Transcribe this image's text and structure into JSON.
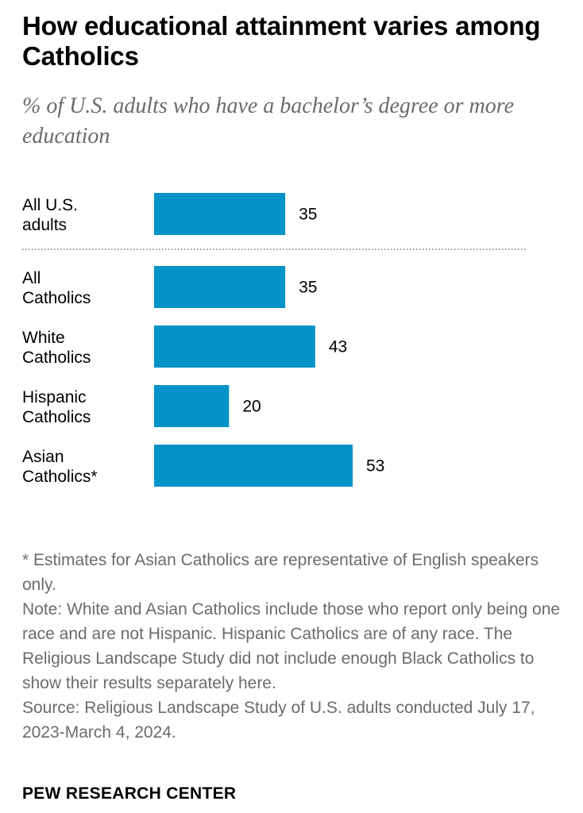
{
  "title": "How educational attainment varies among Catholics",
  "subtitle": "% of U.S. adults who have a bachelor’s degree or more education",
  "chart_data": {
    "type": "bar",
    "orientation": "horizontal",
    "title": "How educational attainment varies among Catholics",
    "subtitle": "% of U.S. adults who have a bachelor’s degree or more education",
    "bar_color": "#0393c8",
    "categories": [
      [
        "All U.S.",
        "adults"
      ],
      [
        "All",
        "Catholics"
      ],
      [
        "White",
        "Catholics"
      ],
      [
        "Hispanic",
        "Catholics"
      ],
      [
        "Asian",
        "Catholics*"
      ]
    ],
    "values": [
      35,
      35,
      43,
      20,
      53
    ],
    "value_labels": [
      "35",
      "35",
      "43",
      "20",
      "53"
    ],
    "separator_after_index": 0,
    "xlim": [
      0,
      100
    ],
    "xlabel": "",
    "ylabel": ""
  },
  "notes": {
    "asterisk": "* Estimates for Asian Catholics are representative of English speakers only.",
    "note": "Note: White and Asian Catholics include those who report only being one race and are not Hispanic. Hispanic Catholics are of any race. The Religious Landscape Study did not include enough Black Catholics to show their results separately here.",
    "source": "Source: Religious Landscape Study of U.S. adults conducted July 17, 2023-March 4, 2024."
  },
  "brand": "PEW RESEARCH CENTER"
}
